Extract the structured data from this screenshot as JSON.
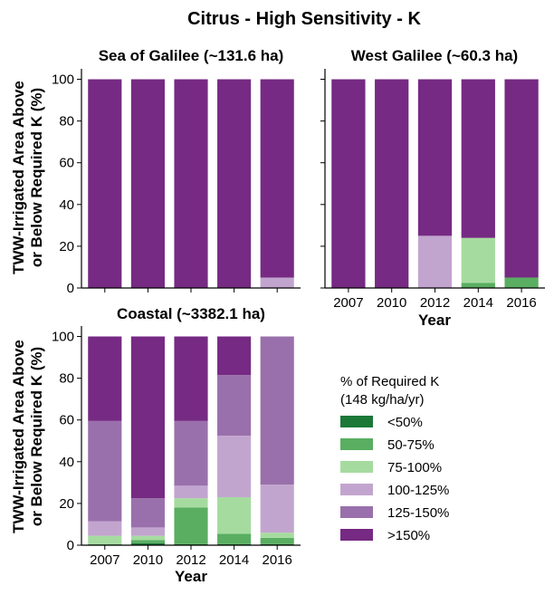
{
  "figure": {
    "title": "Citrus - High Sensitivity - K",
    "ylabel_line1": "TWW-Irrigated Area Above",
    "ylabel_line2": "or Below Required K (%)",
    "xlabel": "Year"
  },
  "legend": {
    "title_line1": "% of Required K",
    "title_line2": "(148 kg/ha/yr)",
    "items": [
      {
        "label": "<50%",
        "color": "#1b7837"
      },
      {
        "label": "50-75%",
        "color": "#5aae61"
      },
      {
        "label": "75-100%",
        "color": "#a6dba0"
      },
      {
        "label": "100-125%",
        "color": "#c2a5cf"
      },
      {
        "label": "125-150%",
        "color": "#9970ab"
      },
      {
        "label": ">150%",
        "color": "#762a83"
      }
    ]
  },
  "chart_data": [
    {
      "type": "bar",
      "stacked": true,
      "title": "Sea of Galilee (~131.6 ha)",
      "categories": [
        "2007",
        "2010",
        "2012",
        "2014",
        "2016"
      ],
      "show_x_tick_labels": false,
      "ylim": [
        0,
        105
      ],
      "yticks": [
        0,
        20,
        40,
        60,
        80,
        100
      ],
      "series": [
        {
          "name": "<50%",
          "values": [
            0,
            0,
            0,
            0,
            0
          ]
        },
        {
          "name": "50-75%",
          "values": [
            0,
            0,
            0,
            0,
            0
          ]
        },
        {
          "name": "75-100%",
          "values": [
            0,
            0,
            0,
            0,
            0
          ]
        },
        {
          "name": "100-125%",
          "values": [
            0,
            0,
            0,
            0,
            5
          ]
        },
        {
          "name": "125-150%",
          "values": [
            0,
            0,
            0,
            0,
            0
          ]
        },
        {
          "name": ">150%",
          "values": [
            100,
            100,
            100,
            100,
            95
          ]
        }
      ]
    },
    {
      "type": "bar",
      "stacked": true,
      "title": "West Galilee (~60.3 ha)",
      "categories": [
        "2007",
        "2010",
        "2012",
        "2014",
        "2016"
      ],
      "show_x_tick_labels": true,
      "ylim": [
        0,
        105
      ],
      "yticks": [
        0,
        20,
        40,
        60,
        80,
        100
      ],
      "series": [
        {
          "name": "<50%",
          "values": [
            0,
            0,
            0,
            0,
            0
          ]
        },
        {
          "name": "50-75%",
          "values": [
            0,
            0,
            0,
            2.5,
            5
          ]
        },
        {
          "name": "75-100%",
          "values": [
            0,
            0,
            0,
            21.5,
            0
          ]
        },
        {
          "name": "100-125%",
          "values": [
            0,
            0,
            25,
            0,
            0
          ]
        },
        {
          "name": "125-150%",
          "values": [
            0,
            0,
            0,
            0,
            0
          ]
        },
        {
          "name": ">150%",
          "values": [
            100,
            100,
            75,
            76,
            95
          ]
        }
      ]
    },
    {
      "type": "bar",
      "stacked": true,
      "title": "Coastal (~3382.1 ha)",
      "categories": [
        "2007",
        "2010",
        "2012",
        "2014",
        "2016"
      ],
      "show_x_tick_labels": true,
      "ylim": [
        0,
        105
      ],
      "yticks": [
        0,
        20,
        40,
        60,
        80,
        100
      ],
      "series": [
        {
          "name": "<50%",
          "values": [
            0,
            1,
            0.5,
            0.5,
            0.5
          ]
        },
        {
          "name": "50-75%",
          "values": [
            0.5,
            1.5,
            17.5,
            5,
            3
          ]
        },
        {
          "name": "75-100%",
          "values": [
            4,
            2,
            4.5,
            17.5,
            2.5
          ]
        },
        {
          "name": "100-125%",
          "values": [
            7,
            4,
            6,
            29.5,
            23
          ]
        },
        {
          "name": "125-150%",
          "values": [
            48,
            14,
            31,
            29,
            71
          ]
        },
        {
          "name": ">150%",
          "values": [
            40.5,
            77.5,
            40.5,
            18.5,
            0
          ]
        }
      ]
    }
  ]
}
